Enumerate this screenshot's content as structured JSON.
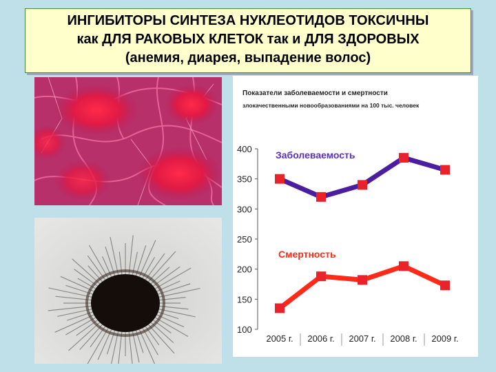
{
  "title": {
    "line1": "ИНГИБИТОРЫ СИНТЕЗА НУКЛЕОТИДОВ ТОКСИЧНЫ",
    "line2": "как ДЛЯ РАКОВЫХ КЛЕТОК  так и ДЛЯ ЗДОРОВЫХ",
    "line3": "(анемия, диарея, выпадение волос)"
  },
  "colors": {
    "background": "#bfe0e8",
    "title_box": "#ffffcc",
    "incidence_line": "#4b1ea0",
    "incidence_label": "#5a2fc0",
    "mortality_line": "#ff2a1a",
    "marker": "#e8242a"
  },
  "chart_data": {
    "type": "line",
    "title": "Показатели заболеваемости и смертности злокачественными новообразованиями на 100 тыс. человек",
    "title_lines": [
      "Показатели заболеваемости и смертности",
      "злокачественными новообразованиями на 100 тыс. человек"
    ],
    "categories": [
      "2005 г.",
      "2006 г.",
      "2007 г.",
      "2008 г.",
      "2009 г."
    ],
    "series": [
      {
        "name": "Заболеваемость",
        "values": [
          350,
          320,
          340,
          385,
          365
        ]
      },
      {
        "name": "Смертность",
        "values": [
          135,
          188,
          182,
          205,
          173
        ]
      }
    ],
    "yticks": [
      "400",
      "350",
      "300",
      "250",
      "200",
      "150",
      "100"
    ],
    "ylim": [
      100,
      400
    ],
    "grid": false,
    "xlabel": "",
    "ylabel": ""
  }
}
